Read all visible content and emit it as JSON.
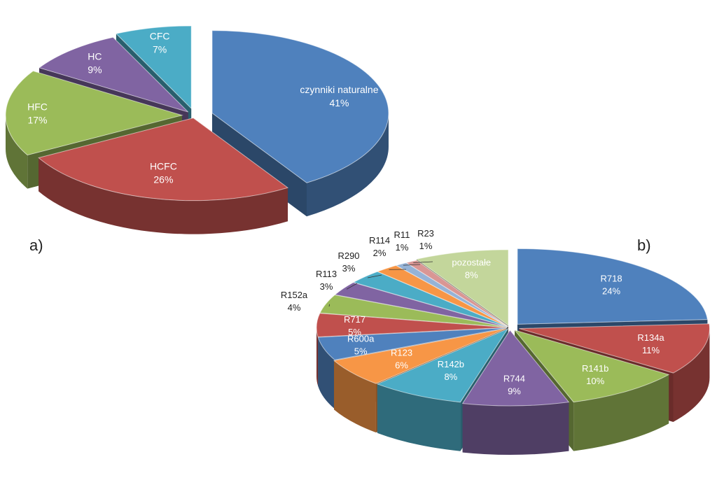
{
  "panels": {
    "a": "a)",
    "b": "b)"
  },
  "chart_data": [
    {
      "type": "pie",
      "slices": [
        {
          "name": "czynniki naturalne",
          "value": 41,
          "label": "41%",
          "color": "#4f81bd"
        },
        {
          "name": "HCFC",
          "value": 26,
          "label": "26%",
          "color": "#c0504d"
        },
        {
          "name": "HFC",
          "value": 17,
          "label": "17%",
          "color": "#9bbb59"
        },
        {
          "name": "HC",
          "value": 9,
          "label": "9%",
          "color": "#8064a2"
        },
        {
          "name": "CFC",
          "value": 7,
          "label": "7%",
          "color": "#4bacc6"
        }
      ]
    },
    {
      "type": "pie",
      "slices": [
        {
          "name": "R718",
          "value": 24,
          "label": "24%",
          "color": "#4f81bd"
        },
        {
          "name": "R134a",
          "value": 11,
          "label": "11%",
          "color": "#c0504d"
        },
        {
          "name": "R141b",
          "value": 10,
          "label": "10%",
          "color": "#9bbb59"
        },
        {
          "name": "R744",
          "value": 9,
          "label": "9%",
          "color": "#8064a2"
        },
        {
          "name": "R142b",
          "value": 8,
          "label": "8%",
          "color": "#4bacc6"
        },
        {
          "name": "R123",
          "value": 6,
          "label": "6%",
          "color": "#f79646"
        },
        {
          "name": "R600a",
          "value": 5,
          "label": "5%",
          "color": "#4f81bd"
        },
        {
          "name": "R717",
          "value": 5,
          "label": "5%",
          "color": "#c0504d"
        },
        {
          "name": "R152a",
          "value": 4,
          "label": "4%",
          "color": "#9bbb59"
        },
        {
          "name": "R113",
          "value": 3,
          "label": "3%",
          "color": "#8064a2"
        },
        {
          "name": "R290",
          "value": 3,
          "label": "3%",
          "color": "#4bacc6"
        },
        {
          "name": "R114",
          "value": 2,
          "label": "2%",
          "color": "#f79646"
        },
        {
          "name": "R11",
          "value": 1,
          "label": "1%",
          "color": "#95b3d7"
        },
        {
          "name": "R23",
          "value": 1,
          "label": "1%",
          "color": "#d99694"
        },
        {
          "name": "pozostałe",
          "value": 8,
          "label": "8%",
          "color": "#c3d69b"
        }
      ]
    }
  ]
}
